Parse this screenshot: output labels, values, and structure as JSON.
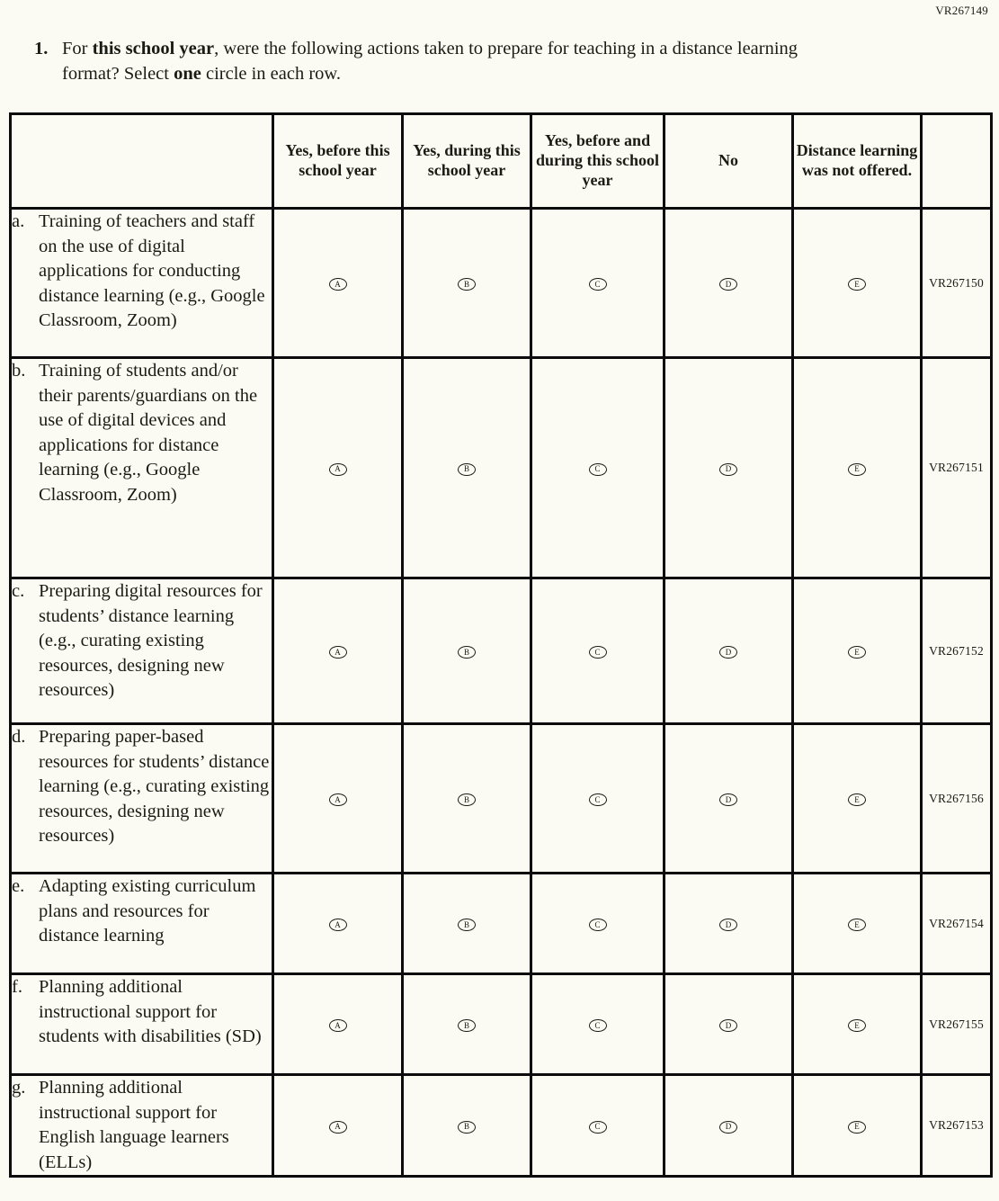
{
  "page": {
    "corner_code": "VR267149"
  },
  "question": {
    "number": "1.",
    "part1": "For ",
    "bold1": "this school year",
    "part2": ", were the following actions taken to prepare for teaching in a distance learning format? Select ",
    "bold2": "one",
    "part3": " circle in each row."
  },
  "table": {
    "column_headers": [
      "Yes, before this school year",
      "Yes, during this school year",
      "Yes, before and during this school year",
      "No",
      "Distance learning was not offered."
    ],
    "option_letters": [
      "A",
      "B",
      "C",
      "D",
      "E"
    ],
    "rows": [
      {
        "letter": "a.",
        "text": "Training of teachers and staff on the use of digital applications for conducting distance learning (e.g., Google Classroom, Zoom)",
        "code": "VR267150"
      },
      {
        "letter": "b.",
        "text": "Training of students and/or their parents/guardians on the use of digital devices and applications for distance learning (e.g., Google Classroom, Zoom)",
        "code": "VR267151"
      },
      {
        "letter": "c.",
        "text": "Preparing digital resources for students’ distance learning (e.g., curating existing resources, designing new resources)",
        "code": "VR267152"
      },
      {
        "letter": "d.",
        "text": "Preparing paper-based resources for students’ distance learning (e.g., curating existing resources, designing new resources)",
        "code": "VR267156"
      },
      {
        "letter": "e.",
        "text": "Adapting existing curriculum plans and resources for distance learning",
        "code": "VR267154"
      },
      {
        "letter": "f.",
        "text": "Planning additional instructional support for students with disabilities (SD)",
        "code": "VR267155"
      },
      {
        "letter": "g.",
        "text": "Planning additional instructional support for English language learners (ELLs)",
        "code": "VR267153"
      }
    ]
  },
  "colors": {
    "background": "#fcfbf3",
    "text": "#1b1b15",
    "border": "#0c0c0c"
  }
}
